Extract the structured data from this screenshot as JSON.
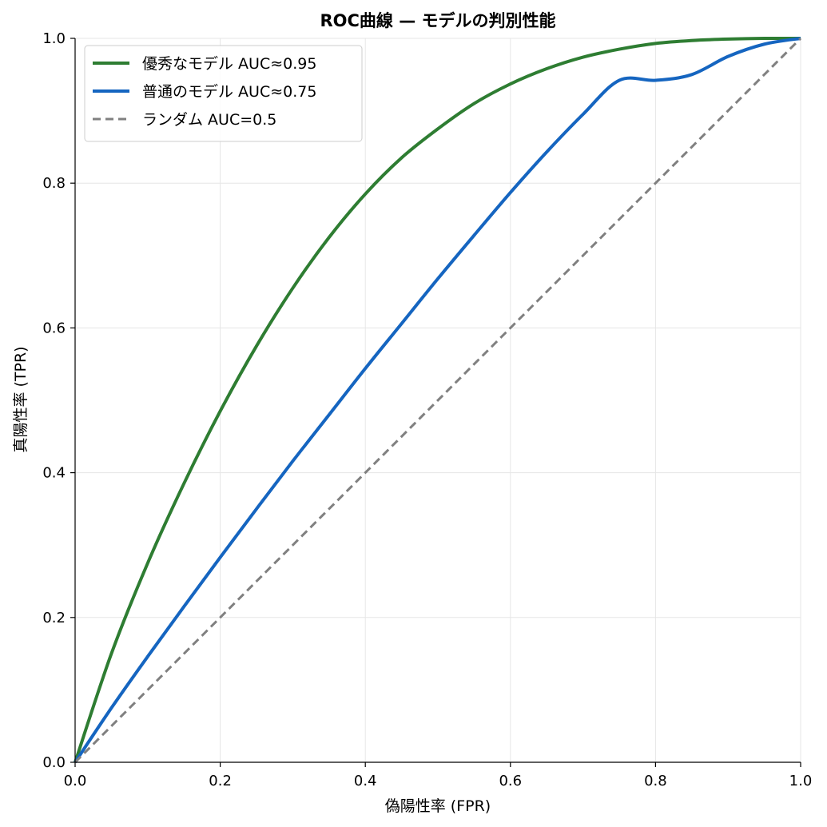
{
  "chart_data": {
    "type": "line",
    "title": "ROC曲線 — モデルの判別性能",
    "xlabel": "偽陽性率 (FPR)",
    "ylabel": "真陽性率 (TPR)",
    "xlim": [
      0.0,
      1.0
    ],
    "ylim": [
      0.0,
      1.0
    ],
    "x_ticks": [
      "0.0",
      "0.2",
      "0.4",
      "0.6",
      "0.8",
      "1.0"
    ],
    "y_ticks": [
      "0.0",
      "0.2",
      "0.4",
      "0.6",
      "0.8",
      "1.0"
    ],
    "grid": true,
    "legend_position": "top-left",
    "series": [
      {
        "name": "優秀なモデル AUC≈0.95",
        "color": "#2e7d32",
        "style": "solid",
        "x": [
          0.0,
          0.05,
          0.1,
          0.15,
          0.2,
          0.25,
          0.3,
          0.35,
          0.4,
          0.45,
          0.5,
          0.55,
          0.6,
          0.65,
          0.7,
          0.75,
          0.8,
          0.85,
          0.9,
          0.95,
          1.0
        ],
        "y": [
          0.0,
          0.15,
          0.275,
          0.385,
          0.485,
          0.575,
          0.655,
          0.725,
          0.785,
          0.835,
          0.875,
          0.91,
          0.937,
          0.958,
          0.974,
          0.985,
          0.993,
          0.997,
          0.999,
          1.0,
          1.0
        ]
      },
      {
        "name": "普通のモデル AUC≈0.75",
        "color": "#1565c0",
        "style": "solid",
        "x": [
          0.0,
          0.05,
          0.1,
          0.15,
          0.2,
          0.25,
          0.3,
          0.35,
          0.4,
          0.45,
          0.5,
          0.55,
          0.6,
          0.65,
          0.7,
          0.75,
          0.8,
          0.85,
          0.9,
          0.95,
          1.0
        ],
        "y": [
          0.0,
          0.075,
          0.146,
          0.215,
          0.283,
          0.35,
          0.416,
          0.48,
          0.544,
          0.606,
          0.668,
          0.728,
          0.787,
          0.843,
          0.895,
          0.942,
          0.911,
          0.95,
          0.975,
          0.992,
          1.0
        ]
      },
      {
        "name": "ランダム AUC=0.5",
        "color": "#808080",
        "style": "dashed",
        "x": [
          0.0,
          1.0
        ],
        "y": [
          0.0,
          1.0
        ]
      }
    ]
  }
}
